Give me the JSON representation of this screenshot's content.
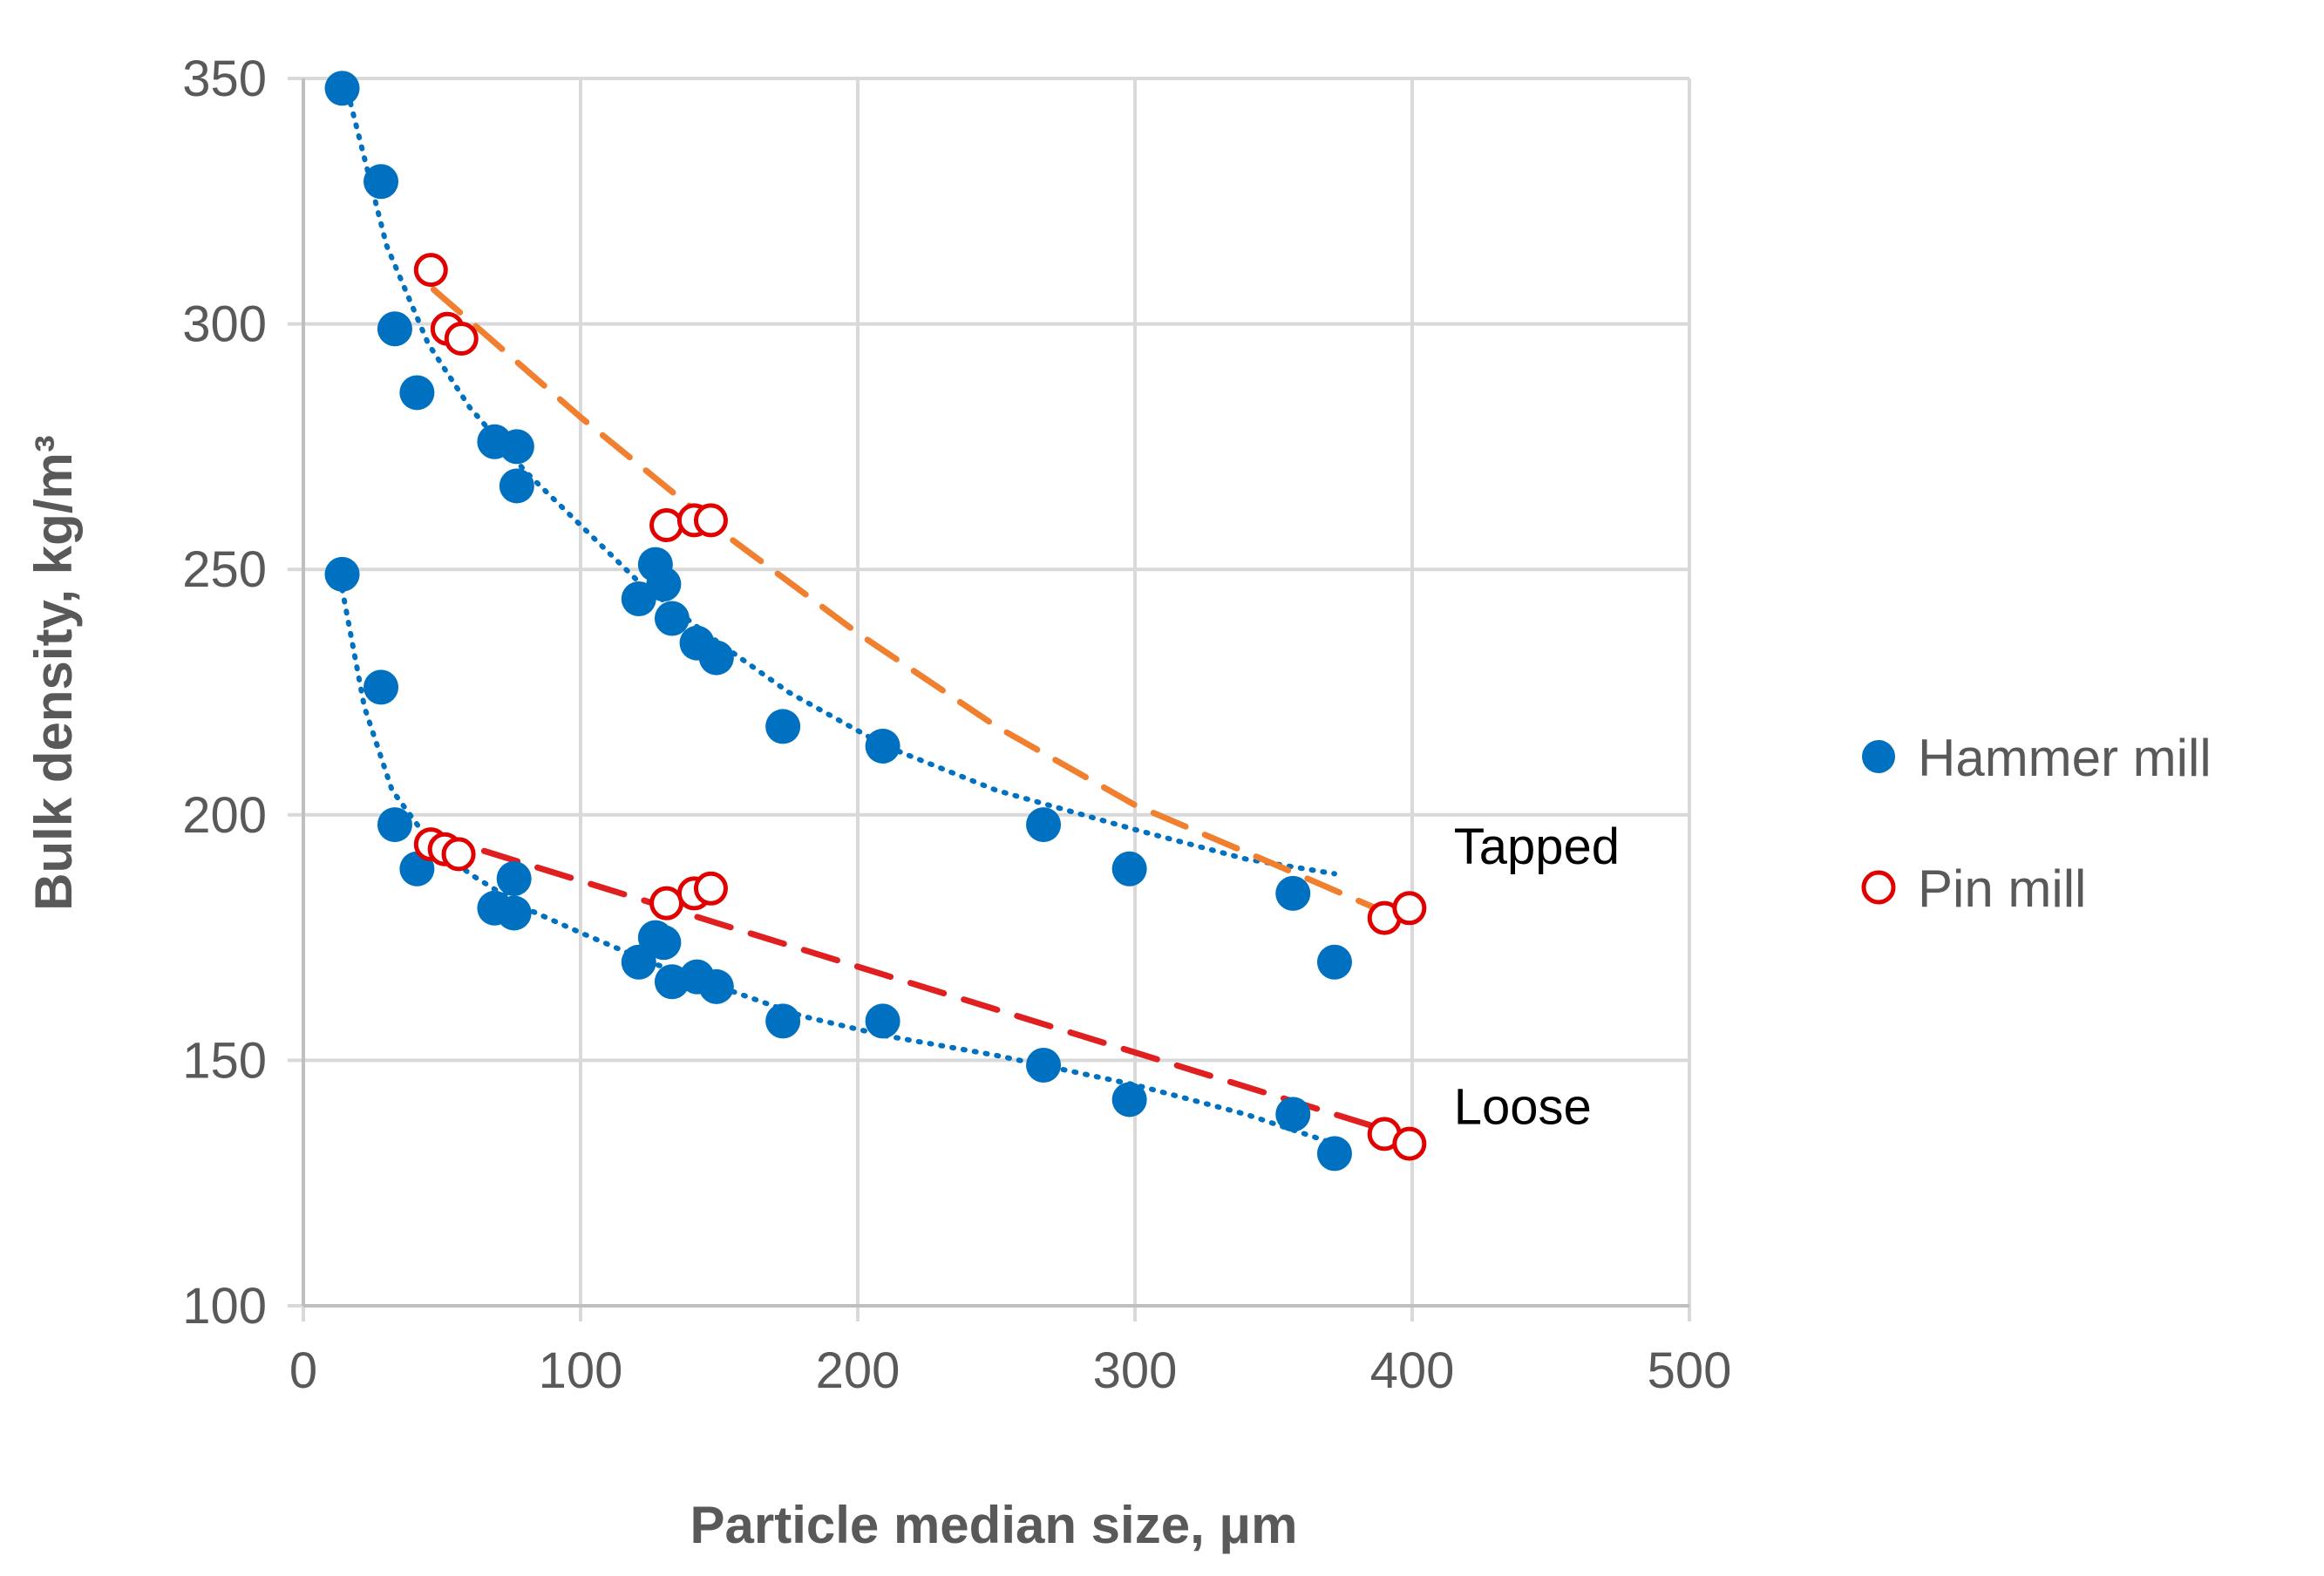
{
  "chart_data": {
    "type": "scatter",
    "title": "",
    "xlabel": "Particle median size, μm",
    "ylabel": "Bulk density, kg/m³",
    "xlim": [
      0,
      500
    ],
    "ylim": [
      100,
      350
    ],
    "xticks": [
      0,
      100,
      200,
      300,
      400,
      500
    ],
    "yticks": [
      100,
      150,
      200,
      250,
      300,
      350
    ],
    "x_tick_labels": [
      "0",
      "100",
      "200",
      "300",
      "400",
      "500"
    ],
    "y_tick_labels": [
      "100",
      "150",
      "200",
      "250",
      "300",
      "350"
    ],
    "grid": true,
    "legend_position": "right",
    "colors": {
      "hammer": "#0070c0",
      "pin": "#e00000",
      "tapped_fit": "#f08030",
      "loose_fit": "#e02020",
      "hammer_fit": "#0070c0",
      "grid": "#d9d9d9"
    },
    "series": [
      {
        "name": "Hammer mill",
        "group": "Tapped",
        "marker": "filled-circle",
        "x": [
          14,
          28,
          33,
          41,
          69,
          77,
          77,
          127,
          130,
          121,
          133,
          142,
          149,
          173,
          209,
          267,
          298,
          357,
          372
        ],
        "y": [
          348,
          329,
          299,
          286,
          276,
          275,
          267,
          251,
          247,
          244,
          240,
          235,
          232,
          218,
          214,
          198,
          189,
          184,
          170
        ]
      },
      {
        "name": "Pin mill",
        "group": "Tapped",
        "marker": "open-circle",
        "x": [
          46,
          52,
          57,
          131,
          141,
          147,
          390,
          399
        ],
        "y": [
          311,
          299,
          297,
          259,
          260,
          260,
          179,
          181
        ]
      },
      {
        "name": "Hammer mill",
        "group": "Loose",
        "marker": "filled-circle",
        "x": [
          14,
          28,
          33,
          41,
          69,
          76,
          76,
          127,
          130,
          121,
          133,
          142,
          149,
          173,
          209,
          267,
          298,
          357,
          372
        ],
        "y": [
          249,
          226,
          198,
          189,
          181,
          187,
          180,
          175,
          174,
          170,
          166,
          167,
          165,
          158,
          158,
          149,
          142,
          139,
          131
        ]
      },
      {
        "name": "Pin mill",
        "group": "Loose",
        "marker": "open-circle",
        "x": [
          46,
          51,
          56,
          131,
          141,
          147,
          390,
          399
        ],
        "y": [
          194,
          193,
          192,
          182,
          184,
          185,
          135,
          133
        ]
      }
    ],
    "trendlines": [
      {
        "name": "Tapped hammer mill fit",
        "style": "dotted",
        "color": "#0070c0",
        "x": [
          17,
          30,
          45,
          60,
          80,
          100,
          120,
          145,
          175,
          210,
          250,
          300,
          340,
          372
        ],
        "y": [
          345,
          316,
          296,
          283,
          270,
          259,
          248,
          237,
          225,
          214,
          205,
          197,
          191,
          188
        ]
      },
      {
        "name": "Tapped pin mill fit",
        "style": "dashed",
        "color": "#f08030",
        "x": [
          47,
          100,
          150,
          200,
          250,
          300,
          350,
          395
        ],
        "y": [
          307,
          281,
          258,
          237,
          218,
          202,
          190,
          179
        ]
      },
      {
        "name": "Loose hammer mill fit",
        "style": "dotted",
        "color": "#0070c0",
        "x": [
          14,
          22,
          32,
          45,
          60,
          80,
          100,
          125,
          150,
          180,
          210,
          250,
          300,
          340,
          372
        ],
        "y": [
          246,
          222,
          205,
          195,
          188,
          181,
          176,
          170,
          165,
          159,
          155,
          151,
          145,
          139,
          133
        ]
      },
      {
        "name": "Loose pin mill fit",
        "style": "dashed",
        "color": "#e02020",
        "x": [
          46,
          395
        ],
        "y": [
          196,
          135
        ]
      }
    ],
    "annotations": [
      {
        "text": "Tapped",
        "x": 415,
        "y": 190
      },
      {
        "text": "Loose",
        "x": 415,
        "y": 137
      }
    ]
  }
}
